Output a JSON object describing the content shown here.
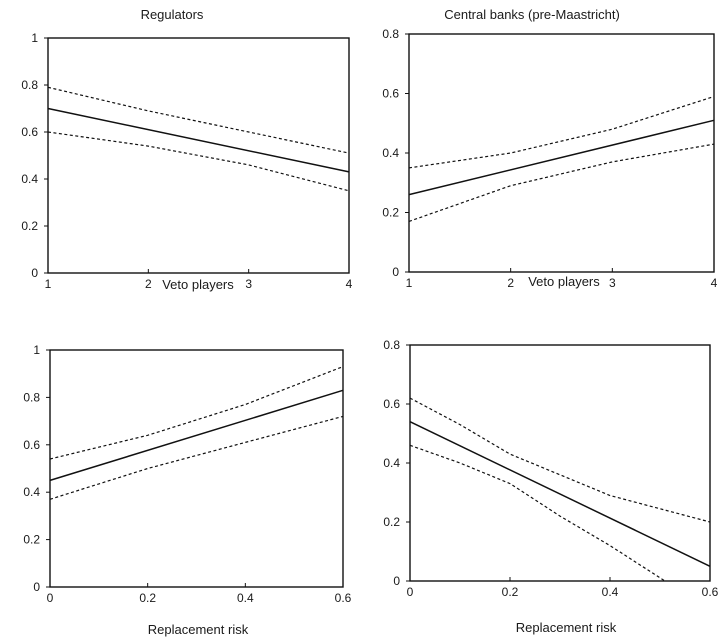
{
  "chart_data": [
    {
      "type": "line",
      "title": "Regulators",
      "xlabel": "Veto players",
      "ylabel": "",
      "xlim": [
        1,
        4
      ],
      "ylim": [
        0,
        1
      ],
      "xticks": [
        "1",
        "2",
        "3",
        "4"
      ],
      "yticks": [
        "0",
        "0.2",
        "0.4",
        "0.6",
        "0.8",
        "1"
      ],
      "grid": false,
      "series": [
        {
          "role": "estimate",
          "style": "solid",
          "x": [
            1,
            4
          ],
          "y": [
            0.7,
            0.43
          ]
        },
        {
          "role": "upper",
          "style": "dotted",
          "x": [
            1,
            2,
            3,
            4
          ],
          "y": [
            0.79,
            0.69,
            0.6,
            0.51
          ]
        },
        {
          "role": "lower",
          "style": "dotted",
          "x": [
            1,
            2,
            3,
            4
          ],
          "y": [
            0.6,
            0.54,
            0.46,
            0.35
          ]
        }
      ]
    },
    {
      "type": "line",
      "title": "Central banks (pre-Maastricht)",
      "xlabel": "Veto players",
      "ylabel": "",
      "xlim": [
        1,
        4
      ],
      "ylim": [
        0,
        0.8
      ],
      "xticks": [
        "1",
        "2",
        "3",
        "4"
      ],
      "yticks": [
        "0",
        "0.2",
        "0.4",
        "0.6",
        "0.8"
      ],
      "grid": false,
      "series": [
        {
          "role": "estimate",
          "style": "solid",
          "x": [
            1,
            4
          ],
          "y": [
            0.26,
            0.51
          ]
        },
        {
          "role": "upper",
          "style": "dotted",
          "x": [
            1,
            2,
            3,
            4
          ],
          "y": [
            0.35,
            0.4,
            0.48,
            0.59
          ]
        },
        {
          "role": "lower",
          "style": "dotted",
          "x": [
            1,
            2,
            3,
            4
          ],
          "y": [
            0.17,
            0.29,
            0.37,
            0.43
          ]
        }
      ]
    },
    {
      "type": "line",
      "title": "",
      "xlabel": "Replacement risk",
      "ylabel": "",
      "xlim": [
        0,
        0.6
      ],
      "ylim": [
        0,
        1
      ],
      "xticks": [
        "0",
        "0.2",
        "0.4",
        "0.6"
      ],
      "yticks": [
        "0",
        "0.2",
        "0.4",
        "0.6",
        "0.8",
        "1"
      ],
      "grid": false,
      "series": [
        {
          "role": "estimate",
          "style": "solid",
          "x": [
            0,
            0.6
          ],
          "y": [
            0.45,
            0.83
          ]
        },
        {
          "role": "upper",
          "style": "dotted",
          "x": [
            0,
            0.2,
            0.4,
            0.6
          ],
          "y": [
            0.54,
            0.64,
            0.77,
            0.93
          ]
        },
        {
          "role": "lower",
          "style": "dotted",
          "x": [
            0,
            0.2,
            0.4,
            0.6
          ],
          "y": [
            0.37,
            0.5,
            0.61,
            0.72
          ]
        }
      ]
    },
    {
      "type": "line",
      "title": "",
      "xlabel": "Replacement risk",
      "ylabel": "",
      "xlim": [
        0,
        0.6
      ],
      "ylim": [
        0,
        0.8
      ],
      "xticks": [
        "0",
        "0.2",
        "0.4",
        "0.6"
      ],
      "yticks": [
        "0",
        "0.2",
        "0.4",
        "0.6",
        "0.8"
      ],
      "grid": false,
      "series": [
        {
          "role": "estimate",
          "style": "solid",
          "x": [
            0,
            0.6
          ],
          "y": [
            0.54,
            0.05
          ]
        },
        {
          "role": "upper",
          "style": "dotted",
          "x": [
            0,
            0.1,
            0.2,
            0.4,
            0.6
          ],
          "y": [
            0.62,
            0.53,
            0.43,
            0.29,
            0.2
          ]
        },
        {
          "role": "lower",
          "style": "dotted",
          "x": [
            0,
            0.1,
            0.2,
            0.3,
            0.4,
            0.51
          ],
          "y": [
            0.46,
            0.4,
            0.33,
            0.22,
            0.12,
            0.0
          ]
        }
      ]
    }
  ]
}
